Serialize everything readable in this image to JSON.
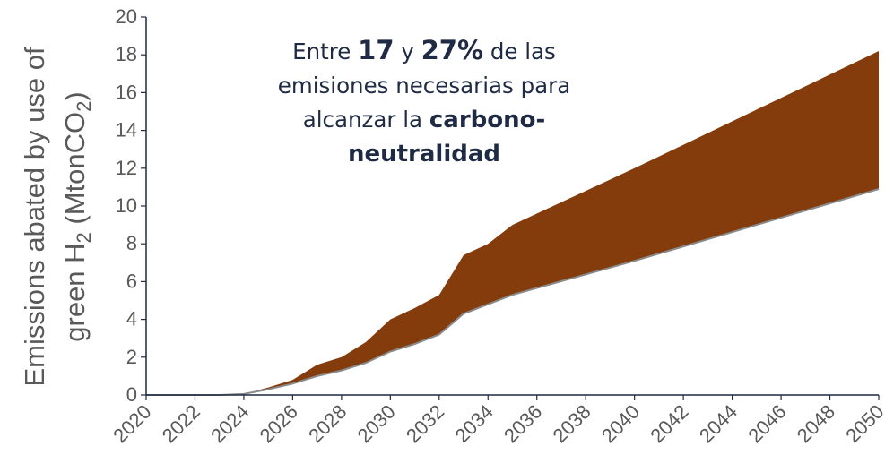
{
  "chart_data": {
    "type": "area",
    "ylabel": "Emissions abated by use of green H2 (MtonCO2)",
    "ylim": [
      0,
      20
    ],
    "yticks": [
      0,
      2,
      4,
      6,
      8,
      10,
      12,
      14,
      16,
      18,
      20
    ],
    "xlim": [
      2020,
      2050
    ],
    "xticks": [
      2020,
      2022,
      2024,
      2026,
      2028,
      2030,
      2032,
      2034,
      2036,
      2038,
      2040,
      2042,
      2044,
      2046,
      2048,
      2050
    ],
    "grid": false,
    "fill_color": "#843c0c",
    "series": [
      {
        "x": [
          2020,
          2021,
          2022,
          2023,
          2024,
          2025,
          2026,
          2027,
          2028,
          2029,
          2030,
          2031,
          2032,
          2033,
          2034,
          2035,
          2040,
          2045,
          2050
        ],
        "values": [
          0,
          0,
          0,
          0,
          0.05,
          0.3,
          0.6,
          1.0,
          1.3,
          1.7,
          2.3,
          2.7,
          3.2,
          4.3,
          4.8,
          5.3,
          7.1,
          9.0,
          10.9
        ]
      },
      {
        "x": [
          2020,
          2021,
          2022,
          2023,
          2024,
          2025,
          2026,
          2027,
          2028,
          2029,
          2030,
          2031,
          2032,
          2033,
          2034,
          2035,
          2040,
          2045,
          2050
        ],
        "values": [
          0,
          0,
          0,
          0,
          0.05,
          0.4,
          0.8,
          1.6,
          2.0,
          2.8,
          4.0,
          4.6,
          5.3,
          7.4,
          8.0,
          9.0,
          12.0,
          15.1,
          18.2
        ]
      }
    ],
    "annotation": {
      "l1_pre": "Entre ",
      "l1_b1": "17",
      "l1_mid": " y ",
      "l1_b2": "27%",
      "l1_post": " de las",
      "l2": "emisiones necesarias para",
      "l3_pre": "alcanzar la ",
      "l3_b": "carbono-",
      "l4_b": "neutralidad"
    },
    "ylabel_parts": {
      "line1": "Emissions abated by use of",
      "l2a": "green H",
      "l2sub1": "2",
      "l2b": " (MtonCO",
      "l2sub2": "2",
      "l2c": ")"
    }
  }
}
